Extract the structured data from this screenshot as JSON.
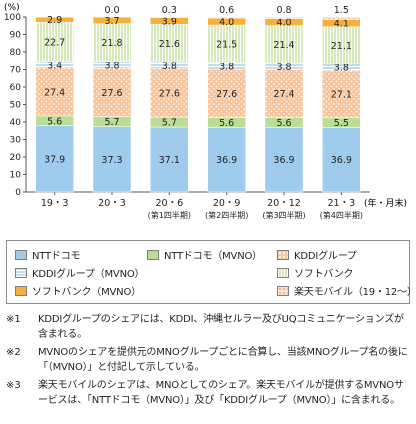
{
  "chart_data": {
    "type": "bar",
    "stacked": true,
    "ylim": [
      0,
      100
    ],
    "y_unit": "(%)",
    "y_ticks": [
      "0",
      "10",
      "20",
      "30",
      "40",
      "50",
      "60",
      "70",
      "80",
      "90",
      "100"
    ],
    "categories": [
      "19・3",
      "20・3",
      "20・6",
      "20・9",
      "20・12",
      "21・3"
    ],
    "category_sublabels": [
      "",
      "",
      "(第1四半期)",
      "(第2四半期)",
      "(第3四半期)",
      "(第4四半期)"
    ],
    "x_unit": "(年・月末)",
    "series": [
      {
        "name": "NTTドコモ",
        "color": "#9fcbec",
        "pattern": "none",
        "values": [
          37.9,
          37.3,
          37.1,
          36.9,
          36.9,
          36.9
        ]
      },
      {
        "name": "NTTドコモ（MVNO）",
        "color": "#bcdd96",
        "pattern": "none",
        "values": [
          5.6,
          5.7,
          5.7,
          5.6,
          5.6,
          5.5
        ]
      },
      {
        "name": "KDDIグループ",
        "color": "#f7c49c",
        "pattern": "dots",
        "values": [
          27.4,
          27.6,
          27.6,
          27.6,
          27.4,
          27.1
        ]
      },
      {
        "name": "KDDIグループ（MVNO）",
        "color": "#c3dcf0",
        "pattern": "hlines",
        "values": [
          3.4,
          3.8,
          3.8,
          3.8,
          3.8,
          3.8
        ]
      },
      {
        "name": "ソフトバンク",
        "color": "#d6eab9",
        "pattern": "vlines",
        "values": [
          22.7,
          21.8,
          21.6,
          21.5,
          21.4,
          21.1
        ]
      },
      {
        "name": "ソフトバンク（MVNO）",
        "color": "#f6b03c",
        "pattern": "none",
        "values": [
          2.9,
          3.7,
          3.9,
          4.0,
          4.0,
          4.1
        ]
      },
      {
        "name": "楽天モバイル（19・12～）",
        "color": "#fce3cf",
        "pattern": "dots",
        "values": [
          null,
          0.0,
          0.3,
          0.6,
          0.8,
          1.5
        ]
      }
    ],
    "legend": {
      "position": "bottom",
      "items": [
        {
          "label": "NTTドコモ",
          "color": "#9fcbec",
          "pattern": "none"
        },
        {
          "label": "NTTドコモ（MVNO）",
          "color": "#bcdd96",
          "pattern": "none"
        },
        {
          "label": "KDDIグループ",
          "color": "#f7c49c",
          "pattern": "dots"
        },
        {
          "label": "KDDIグループ（MVNO）",
          "color": "#c3dcf0",
          "pattern": "hlines"
        },
        {
          "label": "ソフトバンク",
          "color": "#d6eab9",
          "pattern": "vlines"
        },
        {
          "label": "楽天モバイル（19・12～）",
          "color": "#fce3cf",
          "pattern": "dots"
        },
        {
          "label": "ソフトバンク（MVNO）",
          "color": "#f6b03c",
          "pattern": "none"
        }
      ]
    },
    "grid": false
  },
  "notes": [
    {
      "mark": "※1",
      "text": "KDDIグループのシェアには、KDDI、沖縄セルラー及びUQコミュニケーションズが含まれる。"
    },
    {
      "mark": "※2",
      "text": "MVNOのシェアを提供元のMNOグループごとに合算し、当該MNOグループ名の後に「（MVNO）」と付記して示している。"
    },
    {
      "mark": "※3",
      "text": "楽天モバイルのシェアは、MNOとしてのシェア。楽天モバイルが提供するMVNOサービスは、「NTTドコモ（MVNO）」及び「KDDIグループ（MVNO）」に含まれる。"
    }
  ]
}
